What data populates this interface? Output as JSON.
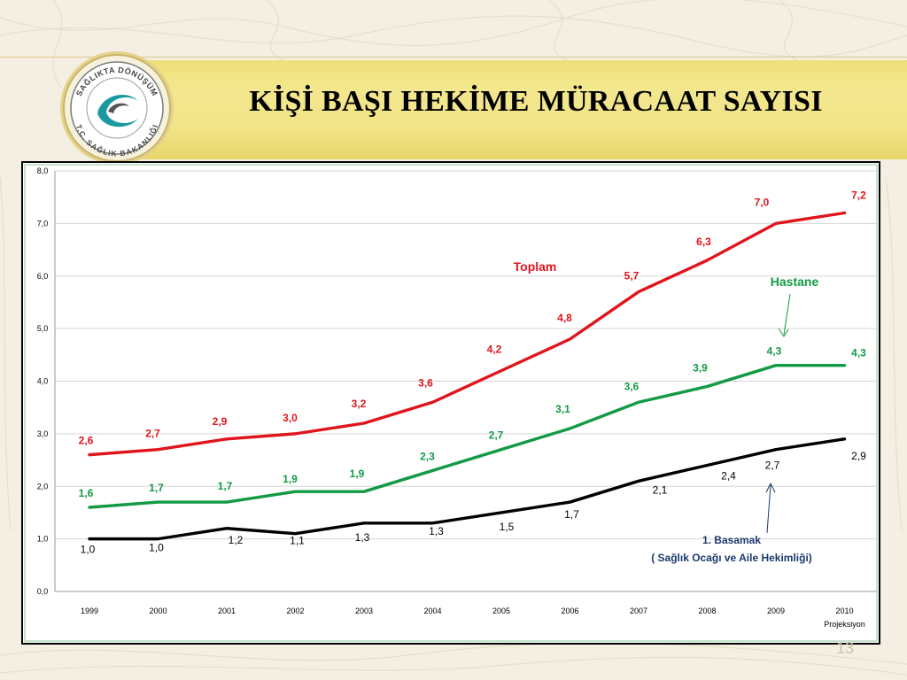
{
  "header": {
    "title": "KİŞİ BAŞI HEKİME MÜRACAAT SAYISI"
  },
  "logo": {
    "top_text": "SAĞLIKTA DÖNÜŞÜM",
    "bottom_text": "T.C. SAĞLIK BAKANLIĞI"
  },
  "page_number": "13",
  "chart_data": {
    "type": "line",
    "categories": [
      "1999",
      "2000",
      "2001",
      "2002",
      "2003",
      "2004",
      "2005",
      "2006",
      "2007",
      "2008",
      "2009",
      "2010"
    ],
    "x_sublabel": "Projeksiyon",
    "ylim": [
      0,
      8
    ],
    "yticks": [
      "0,0",
      "1,0",
      "2,0",
      "3,0",
      "4,0",
      "5,0",
      "6,0",
      "7,0",
      "8,0"
    ],
    "grid": true,
    "series": [
      {
        "name": "Toplam",
        "color": "#e0141c",
        "values": [
          2.6,
          2.7,
          2.9,
          3.0,
          3.2,
          3.6,
          4.2,
          4.8,
          5.7,
          6.3,
          7.0,
          7.2
        ],
        "labels": [
          "2,6",
          "2,7",
          "2,9",
          "3,0",
          "3,2",
          "3,6",
          "4,2",
          "4,8",
          "5,7",
          "6,3",
          "7,0",
          "7,2"
        ]
      },
      {
        "name": "Hastane",
        "color": "#139a45",
        "values": [
          1.6,
          1.7,
          1.7,
          1.9,
          1.9,
          2.3,
          2.7,
          3.1,
          3.6,
          3.9,
          4.3,
          4.3
        ],
        "labels": [
          "1,6",
          "1,7",
          "1,7",
          "1,9",
          "1,9",
          "2,3",
          "2,7",
          "3,1",
          "3,6",
          "3,9",
          "4,3",
          "4,3"
        ]
      },
      {
        "name": "1. Basamak",
        "name_line2": "( Sağlık Ocağı ve Aile Hekimliği)",
        "color": "#000000",
        "values": [
          1.0,
          1.0,
          1.2,
          1.1,
          1.3,
          1.3,
          1.5,
          1.7,
          2.1,
          2.4,
          2.7,
          2.9
        ],
        "labels": [
          "1,0",
          "1,0",
          "1,2",
          "1,1",
          "1,3",
          "1,3",
          "1,5",
          "1,7",
          "2,1",
          "2,4",
          "2,7",
          "2,9"
        ]
      }
    ]
  }
}
